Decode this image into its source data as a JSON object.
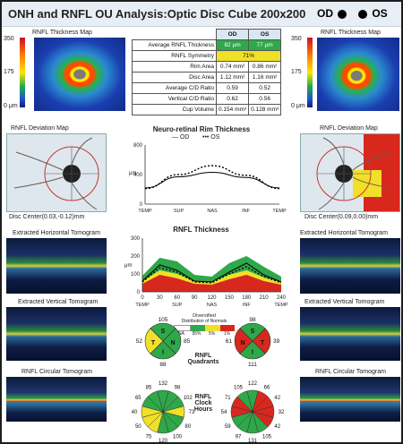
{
  "header": {
    "title": "ONH and RNFL OU Analysis:Optic Disc Cube 200x200",
    "od_label": "OD",
    "os_label": "OS"
  },
  "left": {
    "thickness_map_label": "RNFL Thickness Map",
    "scale_max": "350",
    "scale_mid": "175",
    "scale_min": "0 μm",
    "deviation_map_label": "RNFL Deviation Map",
    "disc_center": "Disc Center(0.03,-0.12)mm",
    "horizontal_tomo_label": "Extracted Horizontal Tomogram",
    "vertical_tomo_label": "Extracted Vertical Tomogram",
    "circular_tomo_label": "RNFL Circular Tomogram"
  },
  "right": {
    "thickness_map_label": "RNFL Thickness Map",
    "scale_max": "350",
    "scale_mid": "175",
    "scale_min": "0 μm",
    "deviation_map_label": "RNFL Deviation Map",
    "disc_center": "Disc Center(0.09,0.00)mm",
    "horizontal_tomo_label": "Extracted Horizontal Tomogram",
    "vertical_tomo_label": "Extracted Vertical Tomogram",
    "circular_tomo_label": "RNFL Circular Tomogram"
  },
  "table": {
    "col_od": "OD",
    "col_os": "OS",
    "rows": [
      {
        "label": "Average RNFL Thickness",
        "od": "82 µm",
        "os": "77 µm"
      },
      {
        "label": "RNFL Symmetry",
        "merged": "71%"
      },
      {
        "label": "Rim Area",
        "od": "0.74 mm²",
        "os": "0.86 mm²"
      },
      {
        "label": "Disc Area",
        "od": "1.12 mm²",
        "os": "1.16 mm²"
      },
      {
        "label": "Average C/D Ratio",
        "od": "0.59",
        "os": "0.52"
      },
      {
        "label": "Vertical C/D Ratio",
        "od": "0.62",
        "os": "0.56"
      },
      {
        "label": "Cup Volume",
        "od": "0.154 mm³",
        "os": "0.128 mm³"
      }
    ]
  },
  "rim_chart": {
    "title": "Neuro-retinal Rim Thickness",
    "legend_od": "OD",
    "legend_os": "OS",
    "y_ticks": [
      "800",
      "400",
      "0"
    ],
    "y_unit": "μm",
    "x_ticks": [
      "TEMP",
      "SUP",
      "NAS",
      "INF",
      "TEMP"
    ]
  },
  "rnfl_chart": {
    "title": "RNFL Thickness",
    "y_ticks": [
      "300",
      "200",
      "100",
      "0"
    ],
    "y_unit": "μm",
    "x_ticks_num": [
      "0",
      "30",
      "60",
      "90",
      "120",
      "150",
      "180",
      "210",
      "240"
    ],
    "x_ticks": [
      "TEMP",
      "SUP",
      "NAS",
      "INF",
      "TEMP"
    ]
  },
  "chart_data": [
    {
      "type": "line",
      "title": "Neuro-retinal Rim Thickness",
      "ylabel": "μm",
      "x": [
        "TEMP",
        "SUP",
        "NAS",
        "INF",
        "TEMP"
      ],
      "ylim": [
        0,
        800
      ],
      "series": [
        {
          "name": "OD",
          "values": [
            220,
            370,
            430,
            360,
            220
          ]
        },
        {
          "name": "OS",
          "values": [
            210,
            400,
            520,
            390,
            210
          ]
        }
      ]
    },
    {
      "type": "line",
      "title": "RNFL Thickness",
      "ylabel": "μm",
      "x": [
        0,
        30,
        60,
        90,
        120,
        150,
        180,
        210,
        240
      ],
      "ylim": [
        0,
        300
      ],
      "series": [
        {
          "values": [
            60,
            150,
            120,
            60,
            55,
            110,
            160,
            95,
            55
          ]
        },
        {
          "values": [
            55,
            135,
            110,
            55,
            50,
            100,
            140,
            85,
            50
          ]
        }
      ]
    }
  ],
  "quadrants": {
    "label": "RNFL Quadrants",
    "od": {
      "top": "105",
      "left": "52",
      "right": "85",
      "bottom": "88",
      "letters": [
        "S",
        "N",
        "I",
        "T"
      ]
    },
    "os": {
      "top": "98",
      "left": "61",
      "right": "39",
      "bottom": "111",
      "letters": [
        "S",
        "T",
        "I",
        "N"
      ]
    }
  },
  "clock": {
    "label": "RNFL Clock Hours",
    "od": [
      "132",
      "98",
      "102",
      "73",
      "80",
      "100",
      "120",
      "75",
      "50",
      "40",
      "65",
      "85"
    ],
    "os": [
      "122",
      "66",
      "42",
      "32",
      "42",
      "105",
      "131",
      "97",
      "59",
      "54",
      "71",
      "105"
    ]
  },
  "legend": {
    "title": "Distribution of Normals",
    "prefix": "Diversified",
    "na": "NA",
    "p95": "95%",
    "p5": "5%",
    "p1": "1%"
  },
  "colors": {
    "green": "#2fa84a",
    "yellow": "#f0e02a",
    "red": "#d8281e",
    "white": "#ffffff",
    "od_line": "#000000"
  }
}
